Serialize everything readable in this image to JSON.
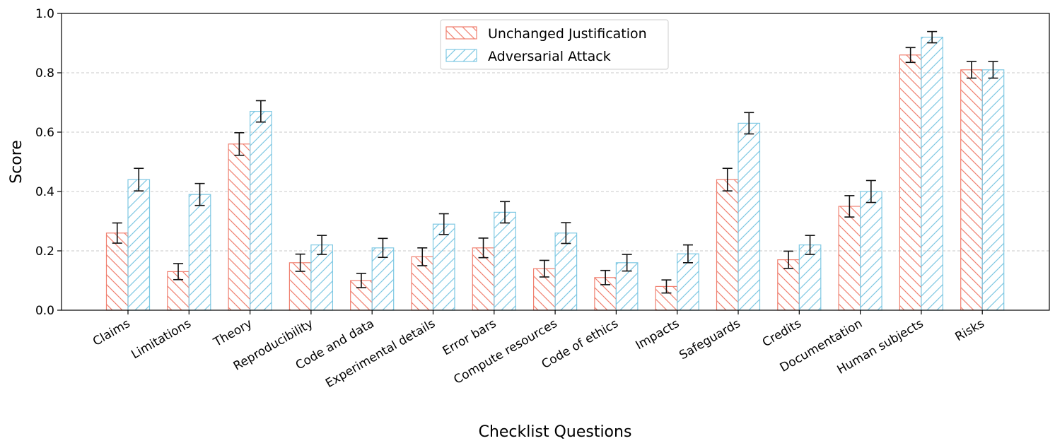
{
  "chart_data": {
    "type": "bar",
    "xlabel": "Checklist Questions",
    "ylabel": "Score",
    "ylim": [
      0,
      1.0
    ],
    "yticks": [
      "0.0",
      "0.2",
      "0.4",
      "0.6",
      "0.8",
      "1.0"
    ],
    "grid": "horizontal dashed",
    "legend_position": "top-center",
    "categories": [
      "Claims",
      "Limitations",
      "Theory",
      "Reproducibility",
      "Code and data",
      "Experimental details",
      "Error bars",
      "Compute resources",
      "Code of ethics",
      "Impacts",
      "Safeguards",
      "Credits",
      "Documentation",
      "Human subjects",
      "Risks"
    ],
    "series": [
      {
        "name": "Unchanged Justification",
        "color": "#f08070",
        "hatch": "backslash",
        "values": [
          0.26,
          0.13,
          0.56,
          0.16,
          0.1,
          0.18,
          0.21,
          0.14,
          0.11,
          0.08,
          0.44,
          0.17,
          0.35,
          0.86,
          0.81
        ],
        "errors": [
          0.034,
          0.027,
          0.038,
          0.029,
          0.024,
          0.03,
          0.033,
          0.028,
          0.024,
          0.022,
          0.038,
          0.029,
          0.036,
          0.025,
          0.028
        ]
      },
      {
        "name": "Adversarial Attack",
        "color": "#7ec8e3",
        "hatch": "slash",
        "values": [
          0.44,
          0.39,
          0.67,
          0.22,
          0.21,
          0.29,
          0.33,
          0.26,
          0.16,
          0.19,
          0.63,
          0.22,
          0.4,
          0.92,
          0.81
        ],
        "errors": [
          0.038,
          0.037,
          0.036,
          0.032,
          0.032,
          0.035,
          0.036,
          0.035,
          0.028,
          0.03,
          0.036,
          0.032,
          0.037,
          0.019,
          0.028
        ]
      }
    ]
  }
}
